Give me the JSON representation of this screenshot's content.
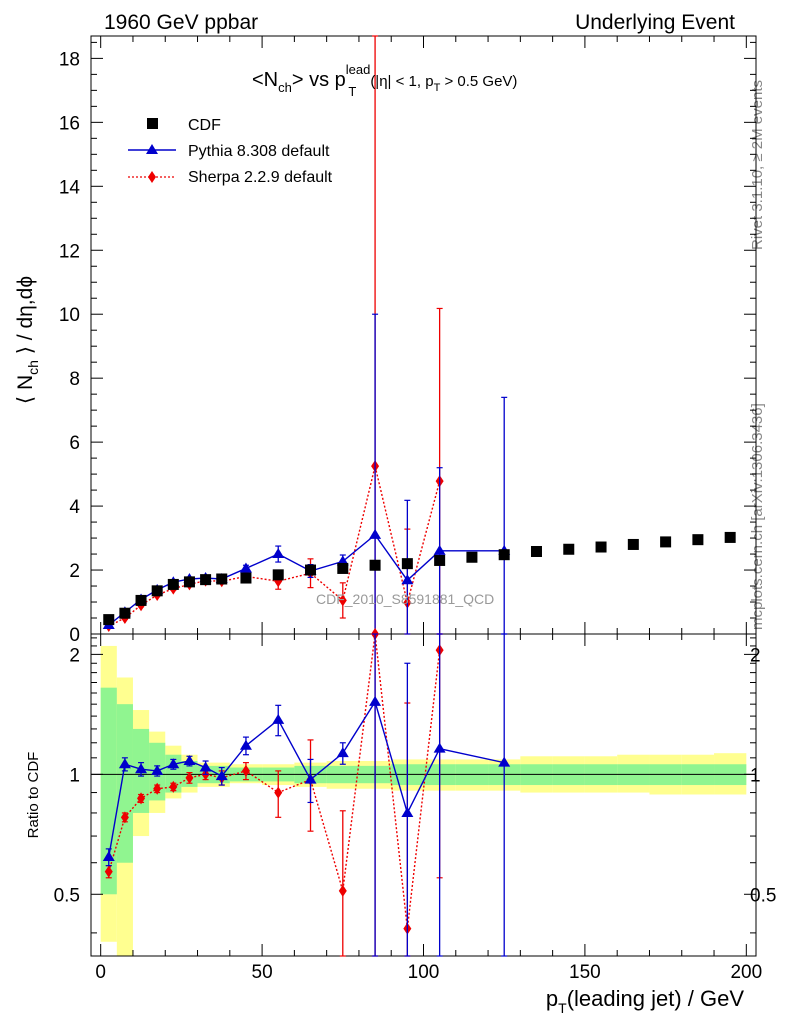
{
  "header": {
    "left": "1960 GeV ppbar",
    "right": "Underlying Event"
  },
  "side": {
    "rivet": "Rivet 3.1.10, ≥ 2M events",
    "mcplots": "mcplots.cern.ch [arXiv:1306.3436]"
  },
  "plot": {
    "title_main": "<N",
    "title_sub_ch": "ch",
    "title_mid": "> vs p",
    "title_sup": "lead",
    "title_sub_t": "T",
    "title_cut": "(|η| < 1, p",
    "title_cut_sub": "T",
    "title_cut_end": " > 0.5 GeV)",
    "ylabel_main": "⟨ N",
    "ylabel_sub": "ch",
    "ylabel_end": " ⟩ / dη,dϕ",
    "ratio_ylabel": "Ratio to CDF",
    "xlabel_main": "p",
    "xlabel_sub": "T",
    "xlabel_end": "(leading jet) / GeV",
    "watermark": "CDF_2010_S8591881_QCD"
  },
  "legend": [
    {
      "label": "CDF",
      "color": "#000000",
      "marker": "square"
    },
    {
      "label": "Pythia 8.308 default",
      "color": "#0000cc",
      "marker": "triangle"
    },
    {
      "label": "Sherpa 2.2.9 default",
      "color": "#ee0000",
      "marker": "diamond"
    }
  ],
  "chart_data": {
    "type": "scatter",
    "x_range": [
      -3,
      203
    ],
    "main_ylim": [
      0,
      18.7
    ],
    "ratio_ylim": [
      0.35,
      2.25
    ],
    "x_ticks": [
      "0",
      "50",
      "100",
      "150",
      "200"
    ],
    "main_y_ticks": [
      "0",
      "2",
      "4",
      "6",
      "8",
      "10",
      "12",
      "14",
      "16",
      "18"
    ],
    "ratio_y_ticks": [
      "0.5",
      "1",
      "2"
    ],
    "x": [
      2.5,
      7.5,
      12.5,
      17.5,
      22.5,
      27.5,
      32.5,
      37.5,
      45,
      55,
      65,
      75,
      85,
      95,
      105,
      115,
      125,
      135,
      145,
      155,
      165,
      175,
      185,
      195
    ],
    "series": [
      {
        "name": "CDF",
        "color": "#000000",
        "values": [
          0.45,
          0.65,
          1.05,
          1.35,
          1.55,
          1.63,
          1.7,
          1.72,
          1.75,
          1.85,
          2.0,
          2.05,
          2.15,
          2.2,
          2.3,
          2.4,
          2.48,
          2.58,
          2.65,
          2.72,
          2.8,
          2.88,
          2.95,
          3.02
        ]
      },
      {
        "name": "Pythia 8.308 default",
        "color": "#0000cc",
        "x": [
          2.5,
          7.5,
          12.5,
          17.5,
          22.5,
          27.5,
          32.5,
          37.5,
          45,
          55,
          65,
          75,
          85,
          95,
          105,
          125
        ],
        "values": [
          0.28,
          0.68,
          1.08,
          1.38,
          1.62,
          1.72,
          1.75,
          1.72,
          2.05,
          2.5,
          1.97,
          2.27,
          3.1,
          1.68,
          2.6,
          2.6
        ],
        "err": [
          0.03,
          0.04,
          0.05,
          0.05,
          0.06,
          0.06,
          0.07,
          0.07,
          0.1,
          0.25,
          0.2,
          0.2,
          6.9,
          2.5,
          2.6,
          4.8
        ]
      },
      {
        "name": "Sherpa 2.2.9 default",
        "color": "#ee0000",
        "x": [
          2.5,
          7.5,
          12.5,
          17.5,
          22.5,
          27.5,
          32.5,
          37.5,
          45,
          55,
          65,
          75,
          85,
          95,
          105
        ],
        "values": [
          0.25,
          0.5,
          0.9,
          1.22,
          1.42,
          1.55,
          1.67,
          1.65,
          1.8,
          1.65,
          1.9,
          1.05,
          5.25,
          0.98,
          4.78
        ],
        "err": [
          0.03,
          0.04,
          0.05,
          0.05,
          0.05,
          0.06,
          0.06,
          0.06,
          0.1,
          0.25,
          0.45,
          0.55,
          13.5,
          2.3,
          5.4
        ]
      }
    ],
    "ratio": {
      "band_edges": [
        0,
        5,
        10,
        15,
        20,
        25,
        30,
        40,
        50,
        60,
        70,
        80,
        90,
        100,
        110,
        120,
        130,
        140,
        150,
        160,
        170,
        180,
        190,
        200
      ],
      "yellow": [
        [
          0.38,
          2.1
        ],
        [
          0.3,
          1.75
        ],
        [
          0.7,
          1.45
        ],
        [
          0.8,
          1.28
        ],
        [
          0.87,
          1.18
        ],
        [
          0.9,
          1.12
        ],
        [
          0.93,
          1.07
        ],
        [
          0.95,
          1.06
        ],
        [
          0.94,
          1.06
        ],
        [
          0.93,
          1.07
        ],
        [
          0.92,
          1.08
        ],
        [
          0.92,
          1.08
        ],
        [
          0.91,
          1.09
        ],
        [
          0.91,
          1.09
        ],
        [
          0.91,
          1.09
        ],
        [
          0.91,
          1.09
        ],
        [
          0.9,
          1.11
        ],
        [
          0.9,
          1.11
        ],
        [
          0.9,
          1.11
        ],
        [
          0.9,
          1.12
        ],
        [
          0.89,
          1.12
        ],
        [
          0.89,
          1.12
        ],
        [
          0.89,
          1.13
        ]
      ],
      "green": [
        [
          0.5,
          1.65
        ],
        [
          0.6,
          1.5
        ],
        [
          0.8,
          1.3
        ],
        [
          0.86,
          1.2
        ],
        [
          0.9,
          1.12
        ],
        [
          0.93,
          1.08
        ],
        [
          0.95,
          1.05
        ],
        [
          0.96,
          1.04
        ],
        [
          0.96,
          1.04
        ],
        [
          0.95,
          1.05
        ],
        [
          0.95,
          1.05
        ],
        [
          0.95,
          1.05
        ],
        [
          0.94,
          1.06
        ],
        [
          0.94,
          1.06
        ],
        [
          0.94,
          1.06
        ],
        [
          0.94,
          1.06
        ],
        [
          0.94,
          1.06
        ],
        [
          0.94,
          1.06
        ],
        [
          0.94,
          1.06
        ],
        [
          0.94,
          1.06
        ],
        [
          0.94,
          1.06
        ],
        [
          0.94,
          1.06
        ],
        [
          0.94,
          1.06
        ]
      ],
      "pythia": {
        "x": [
          2.5,
          7.5,
          12.5,
          17.5,
          22.5,
          27.5,
          32.5,
          37.5,
          45,
          55,
          65,
          75,
          85,
          95,
          105,
          125
        ],
        "values": [
          0.62,
          1.06,
          1.03,
          1.02,
          1.06,
          1.08,
          1.04,
          0.99,
          1.18,
          1.37,
          0.97,
          1.13,
          1.52,
          0.8,
          1.16,
          1.07
        ],
        "err": [
          0.03,
          0.04,
          0.04,
          0.03,
          0.03,
          0.03,
          0.04,
          0.05,
          0.06,
          0.12,
          0.12,
          0.07,
          2.0,
          1.1,
          1.1,
          2.1
        ]
      },
      "sherpa": {
        "x": [
          2.5,
          7.5,
          12.5,
          17.5,
          22.5,
          27.5,
          32.5,
          37.5,
          45,
          55,
          65,
          75,
          85,
          95,
          105
        ],
        "values": [
          0.57,
          0.78,
          0.87,
          0.92,
          0.93,
          0.98,
          1.0,
          0.98,
          1.02,
          0.9,
          0.97,
          0.51,
          2.3,
          0.41,
          2.05
        ],
        "err": [
          0.02,
          0.02,
          0.02,
          0.02,
          0.02,
          0.03,
          0.03,
          0.04,
          0.05,
          0.12,
          0.25,
          0.3,
          2.0,
          1.1,
          1.5
        ]
      }
    }
  }
}
